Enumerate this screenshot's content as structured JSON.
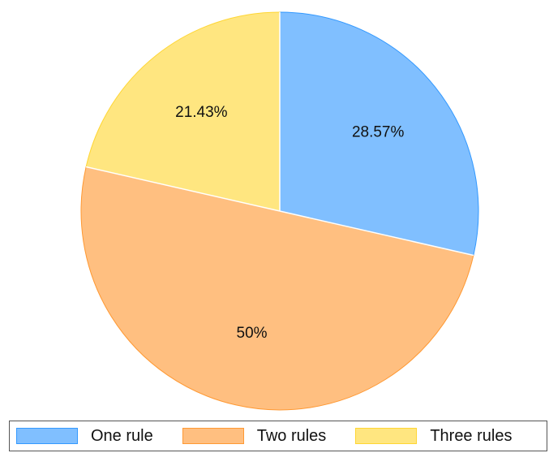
{
  "chart_data": {
    "type": "pie",
    "start_angle_deg": 0,
    "direction": "clockwise",
    "slices": [
      {
        "name": "One rule",
        "value": 28.57,
        "label": "28.57%",
        "fill": "#80bfff",
        "stroke": "#3399ff"
      },
      {
        "name": "Two rules",
        "value": 50,
        "label": "50%",
        "fill": "#ffbf80",
        "stroke": "#ff9933"
      },
      {
        "name": "Three rules",
        "value": 21.43,
        "label": "21.43%",
        "fill": "#ffe680",
        "stroke": "#ffd633"
      }
    ],
    "legend": {
      "placement": "bottom",
      "items": [
        {
          "label": "One rule",
          "color": "#80bfff",
          "stroke": "#3399ff"
        },
        {
          "label": "Two rules",
          "color": "#ffbf80",
          "stroke": "#ff9933"
        },
        {
          "label": "Three rules",
          "color": "#ffe680",
          "stroke": "#ffd633"
        }
      ]
    }
  }
}
